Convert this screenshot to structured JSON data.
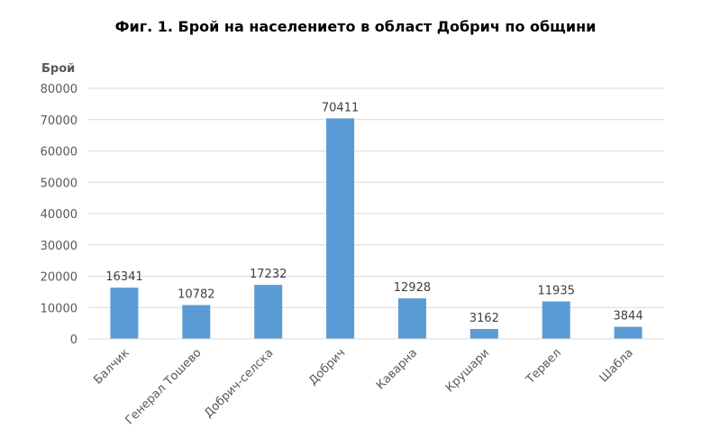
{
  "chart_data": {
    "type": "bar",
    "title": "Фиг. 1. Брой на населението в област Добрич по общини",
    "ylabel": "Брой",
    "xlabel": "",
    "categories": [
      "Балчик",
      "Генерал Тошево",
      "Добрич-селска",
      "Добрич",
      "Каварна",
      "Крушари",
      "Тервел",
      "Шабла"
    ],
    "values": [
      16341,
      10782,
      17232,
      70411,
      12928,
      3162,
      11935,
      3844
    ],
    "ylim": [
      0,
      80000
    ],
    "yticks": [
      0,
      10000,
      20000,
      30000,
      40000,
      50000,
      60000,
      70000,
      80000
    ],
    "grid": true,
    "legend": "none",
    "bar_color": "#5B9BD5",
    "grid_color": "#D9D9D9"
  }
}
